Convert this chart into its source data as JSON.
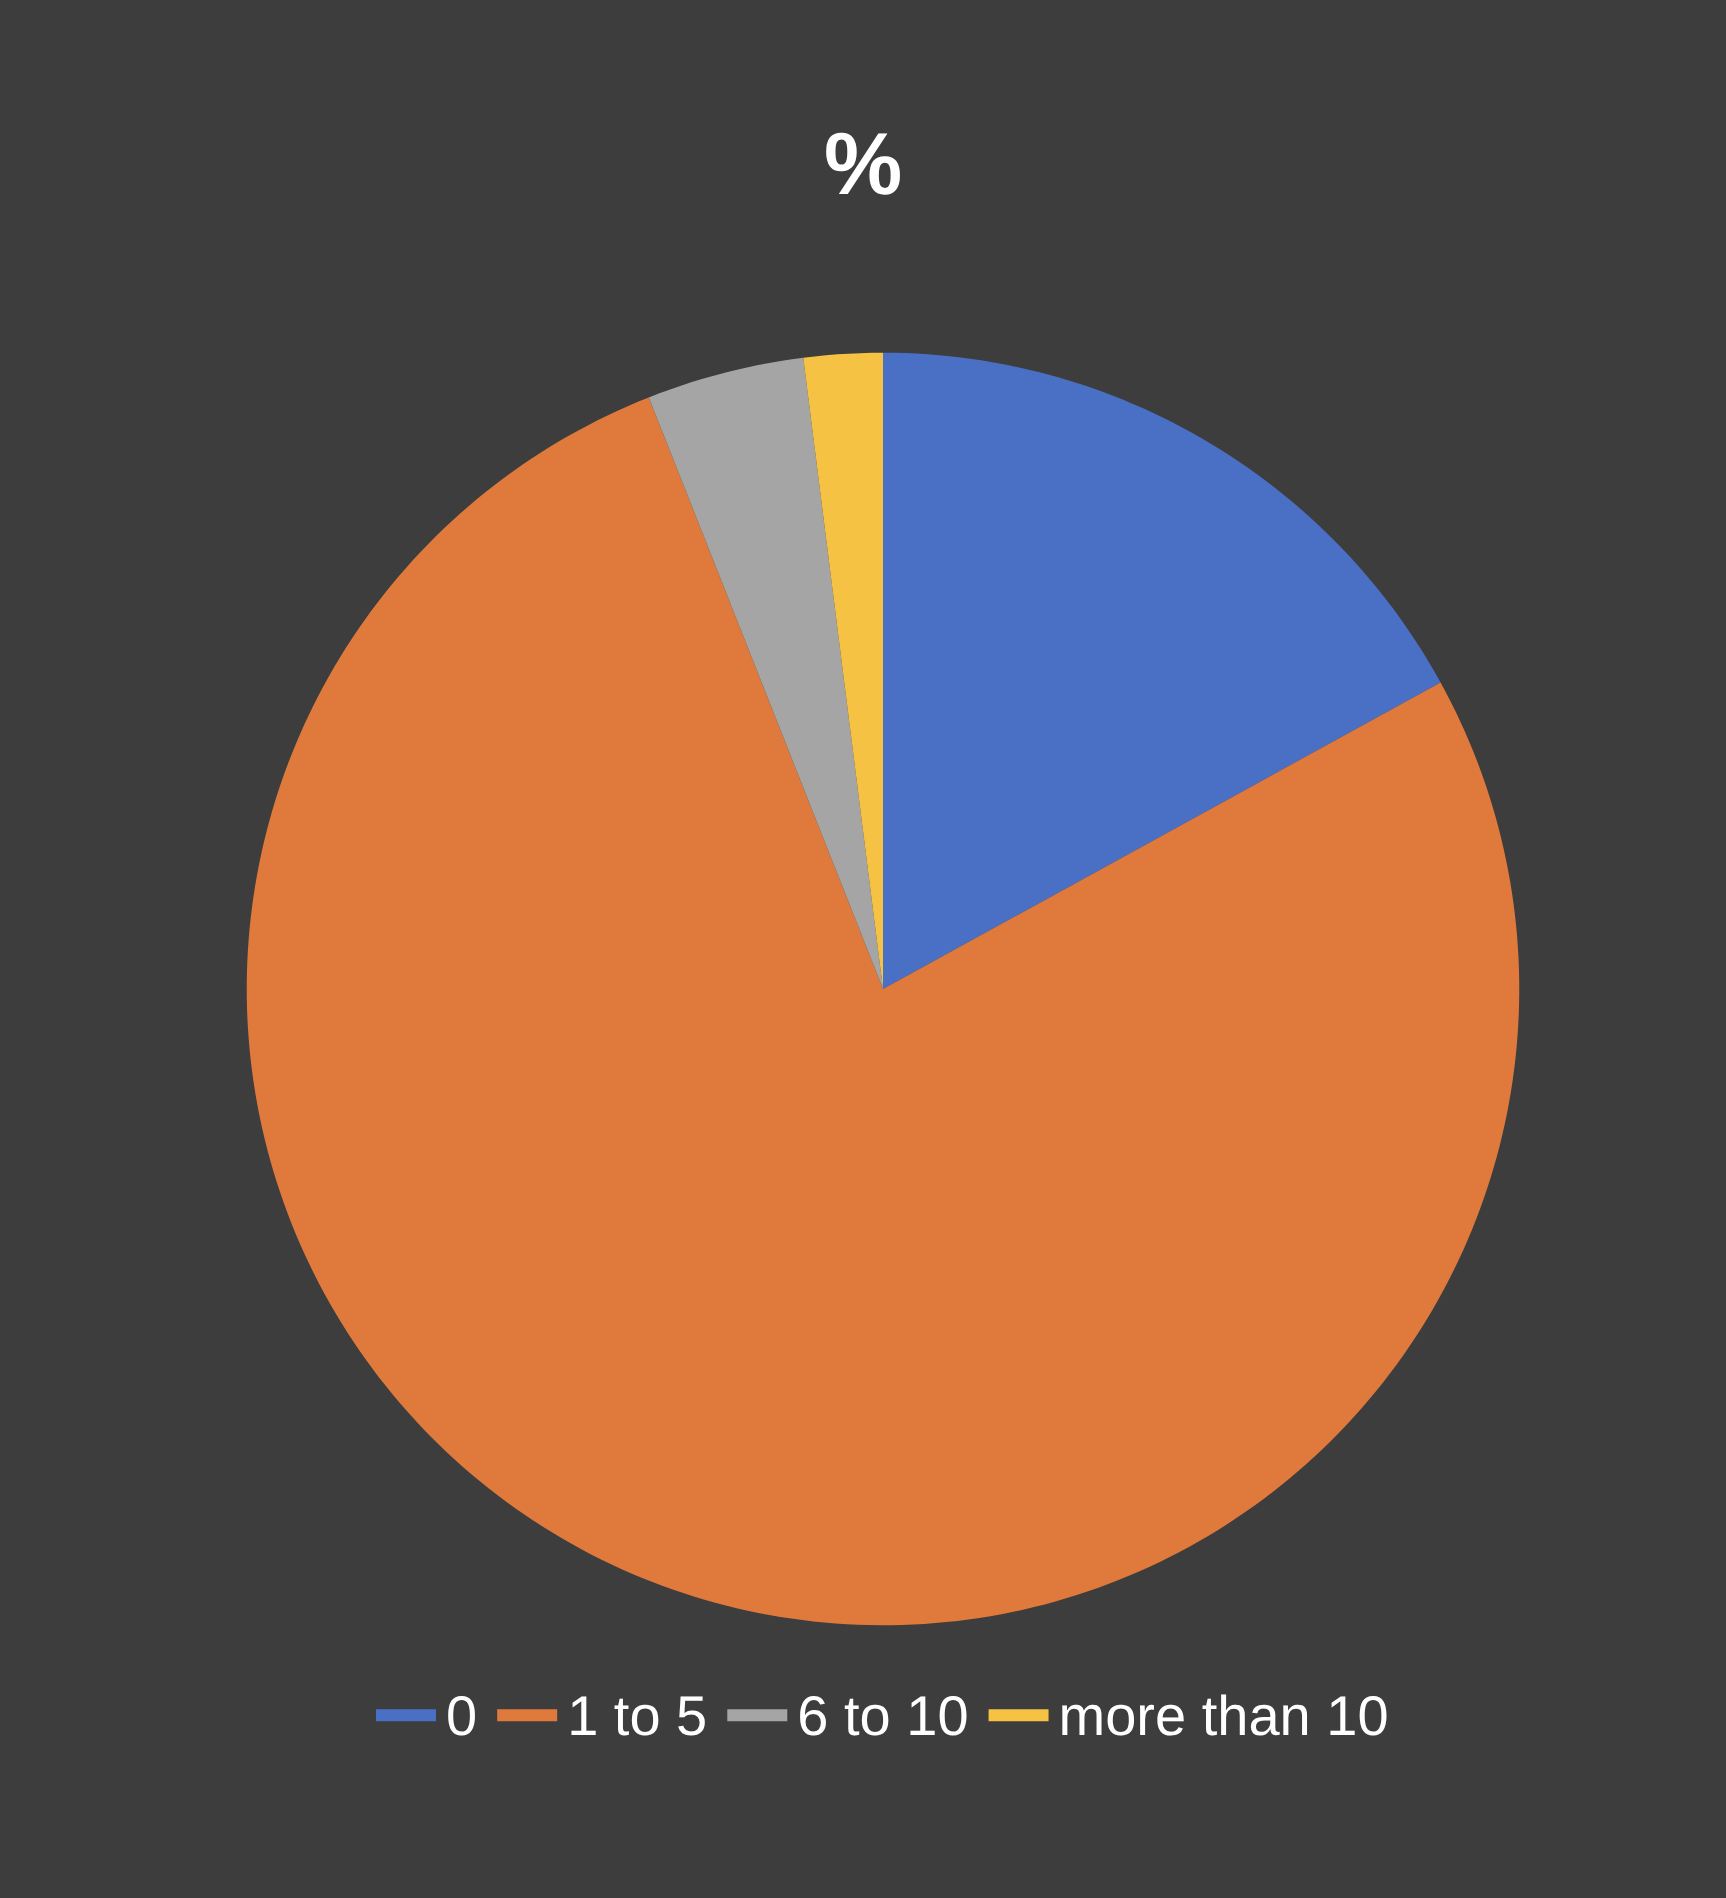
{
  "chart_data": {
    "type": "pie",
    "title": "%",
    "categories": [
      "0",
      "1 to 5",
      "6 to 10",
      "more than 10"
    ],
    "values": [
      17,
      77,
      4,
      2
    ],
    "colors": [
      "#4a70c6",
      "#e07a3c",
      "#a5a5a5",
      "#f5c243"
    ],
    "legend": "bottom"
  }
}
